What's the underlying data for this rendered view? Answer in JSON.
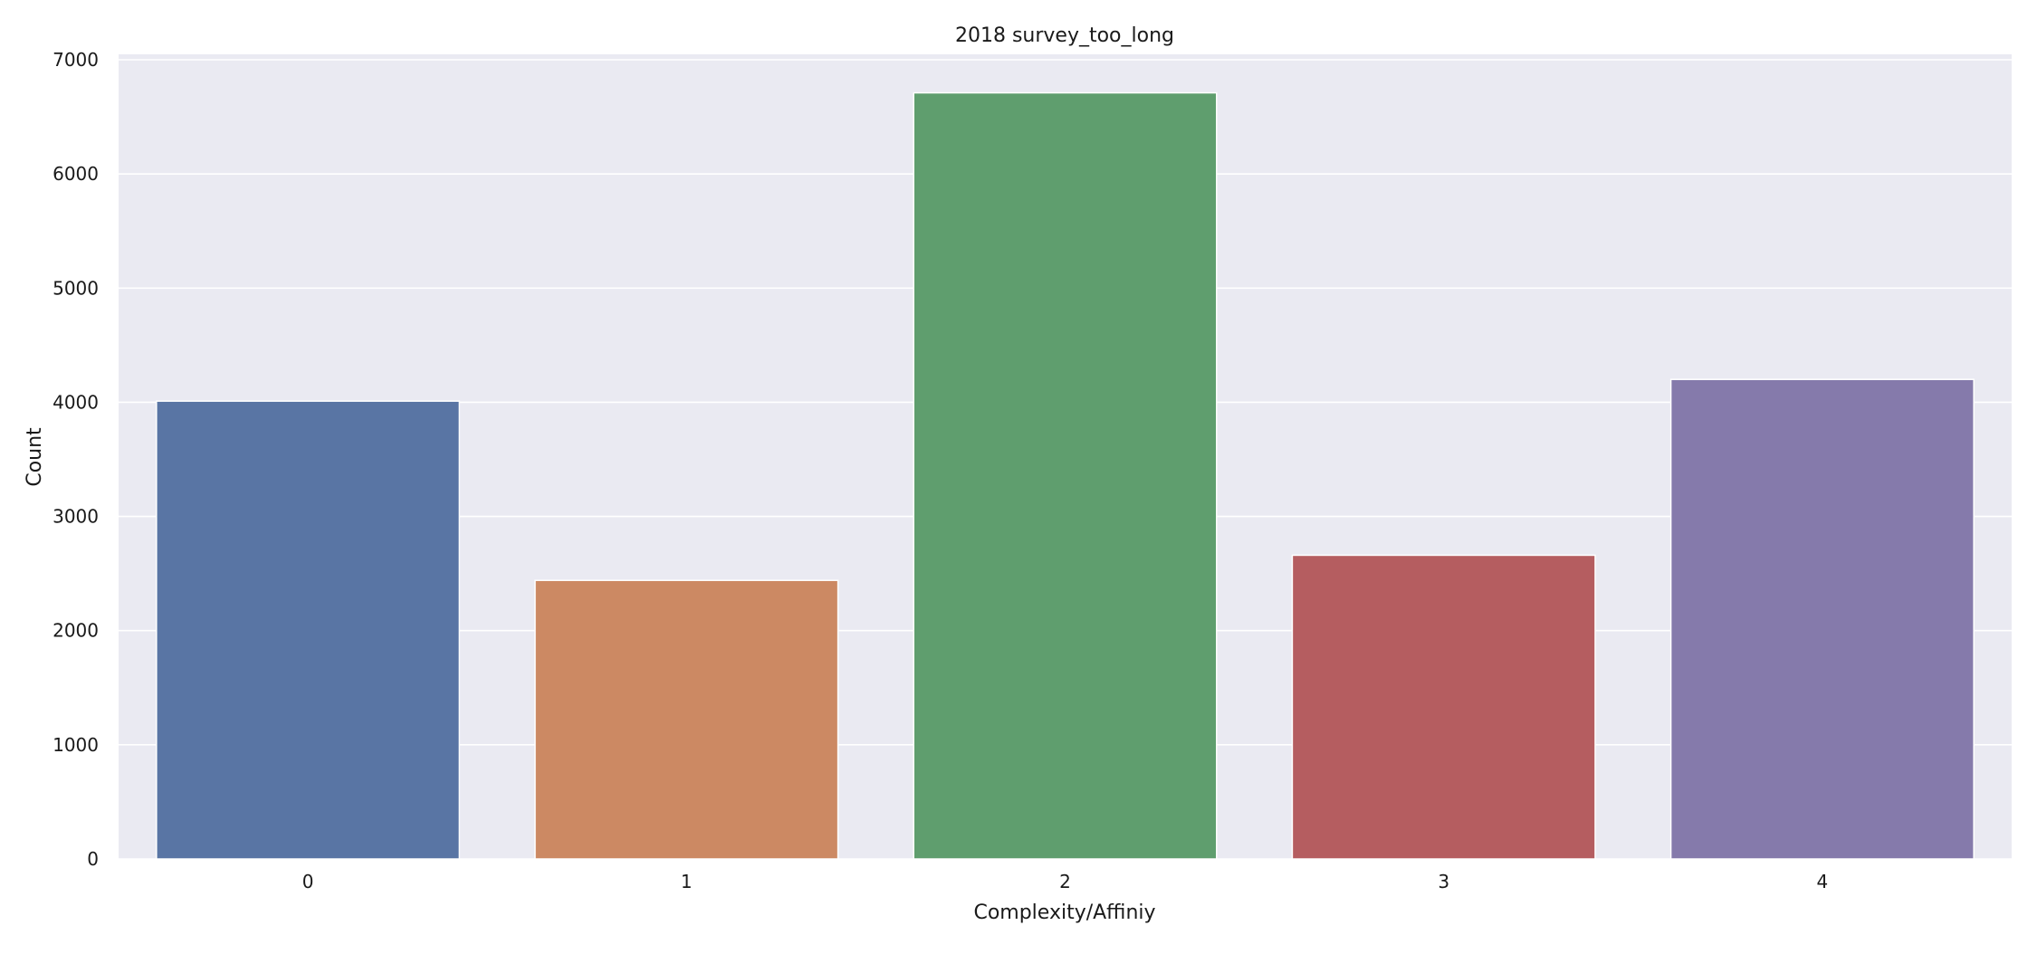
{
  "chart_data": {
    "type": "bar",
    "title": "2018 survey_too_long",
    "xlabel": "Complexity/Affiniy",
    "ylabel": "Count",
    "categories": [
      "0",
      "1",
      "2",
      "3",
      "4"
    ],
    "values": [
      4010,
      2440,
      6710,
      2660,
      4200
    ],
    "colors": [
      "#5975a4",
      "#cc8963",
      "#5f9e6e",
      "#b55d60",
      "#857aab"
    ],
    "ylim": [
      0,
      7000
    ],
    "yticks": [
      0,
      1000,
      2000,
      3000,
      4000,
      5000,
      6000,
      7000
    ],
    "grid": true,
    "background": "#eaeaf2",
    "grid_color": "#ffffff"
  }
}
